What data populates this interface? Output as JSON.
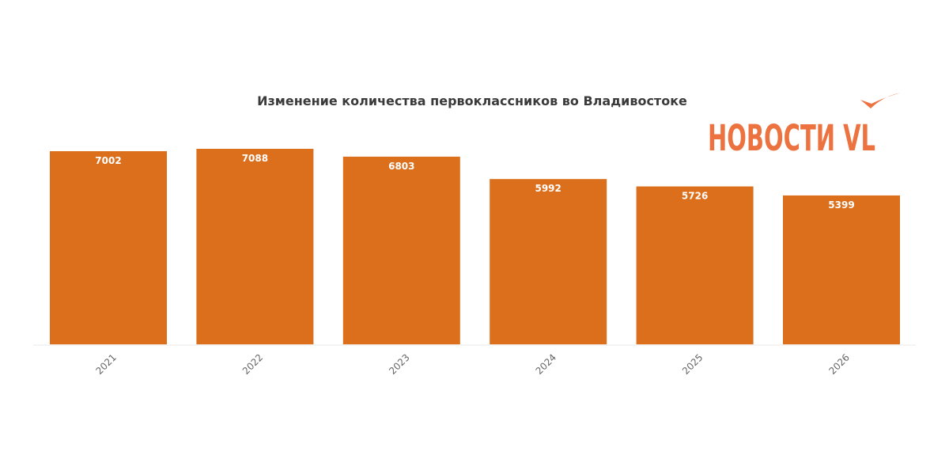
{
  "chart_data": {
    "type": "bar",
    "title": "Изменение количества первоклассников во Владивостоке",
    "xlabel": "",
    "ylabel": "",
    "categories": [
      "2021",
      "2022",
      "2023",
      "2024",
      "2025",
      "2026"
    ],
    "values": [
      7002,
      7088,
      6803,
      5992,
      5726,
      5399
    ],
    "ylim": [
      0,
      7088
    ],
    "bar_color": "#dc6f1c",
    "grid": false,
    "legend": "none"
  },
  "logo": {
    "text": "НОВОСТИ VL",
    "color": "#ec7340"
  }
}
